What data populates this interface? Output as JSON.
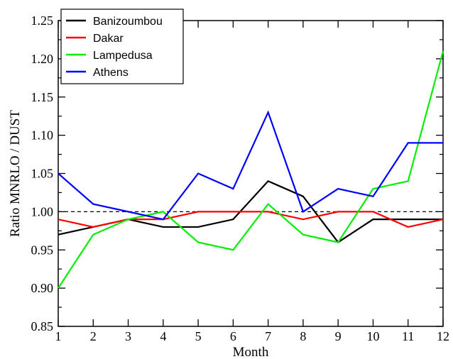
{
  "chart_data": {
    "type": "line",
    "xlabel": "Month",
    "ylabel": "Ratio MNRLO / DUST",
    "x": [
      1,
      2,
      3,
      4,
      5,
      6,
      7,
      8,
      9,
      10,
      11,
      12
    ],
    "xlim": [
      1,
      12
    ],
    "ylim": [
      0.85,
      1.25
    ],
    "yticks": [
      0.85,
      0.9,
      0.95,
      1.0,
      1.05,
      1.1,
      1.15,
      1.2,
      1.25
    ],
    "ytick_labels": [
      "0.85",
      "0.90",
      "0.95",
      "1.00",
      "1.05",
      "1.10",
      "1.15",
      "1.20",
      "1.25"
    ],
    "xticks": [
      1,
      2,
      3,
      4,
      5,
      6,
      7,
      8,
      9,
      10,
      11,
      12
    ],
    "xtick_labels": [
      "1",
      "2",
      "3",
      "4",
      "5",
      "6",
      "7",
      "8",
      "9",
      "10",
      "11",
      "12"
    ],
    "reference_line": {
      "y": 1.0,
      "style": "dashed",
      "color": "#000000"
    },
    "grid": false,
    "legend_position": "top-left",
    "series": [
      {
        "name": "Banizoumbou",
        "color": "#000000",
        "values": [
          0.97,
          0.98,
          0.99,
          0.98,
          0.98,
          0.99,
          1.04,
          1.02,
          0.96,
          0.99,
          0.99,
          0.99
        ]
      },
      {
        "name": "Dakar",
        "color": "#ff0000",
        "values": [
          0.99,
          0.98,
          0.99,
          0.99,
          1.0,
          1.0,
          1.0,
          0.99,
          1.0,
          1.0,
          0.98,
          0.99
        ]
      },
      {
        "name": "Lampedusa",
        "color": "#00ee00",
        "values": [
          0.9,
          0.97,
          0.99,
          1.0,
          0.96,
          0.95,
          1.01,
          0.97,
          0.96,
          1.03,
          1.04,
          1.21
        ]
      },
      {
        "name": "Athens",
        "color": "#0000ff",
        "values": [
          1.05,
          1.01,
          1.0,
          0.99,
          1.05,
          1.03,
          1.13,
          1.0,
          1.03,
          1.02,
          1.09,
          1.09
        ]
      }
    ]
  }
}
